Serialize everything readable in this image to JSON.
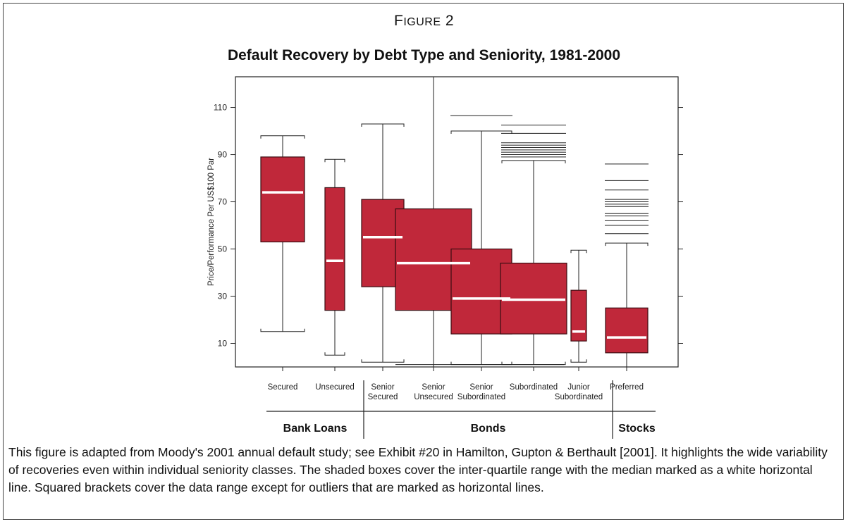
{
  "figure_label": {
    "first": "F",
    "rest": "IGURE",
    "number": " 2"
  },
  "caption": "This figure is adapted from Moody's 2001 annual default study; see Exhibit #20 in Hamilton, Gupton & Berthault [2001]. It highlights the wide variability of recoveries even within individual seniority classes. The shaded boxes cover the inter-quartile range with the median marked as a white horizontal line. Squared brackets cover the data range except for outliers that are marked as horizontal lines.",
  "colors": {
    "box": "#c0283a",
    "median": "#ffffff",
    "axis": "#222222"
  },
  "chart_data": {
    "type": "boxplot",
    "title": "Default Recovery by Debt Type and Seniority, 1981-2000",
    "ylabel": "Price/Performance Per US$100 Par",
    "ylim": [
      0,
      123
    ],
    "yticks": [
      10,
      30,
      50,
      70,
      90,
      110
    ],
    "grid": false,
    "series": [
      {
        "label": [
          "Secured"
        ],
        "group": "Bank Loans",
        "whisker_low": 15,
        "q1": 53,
        "median": 74,
        "q3": 89,
        "whisker_high": 98,
        "outliers": []
      },
      {
        "label": [
          "Unsecured"
        ],
        "group": "Bank Loans",
        "whisker_low": 5,
        "q1": 24,
        "median": 45,
        "q3": 76,
        "whisker_high": 88,
        "outliers": []
      },
      {
        "label": [
          "Senior",
          "Secured"
        ],
        "group": "Bonds",
        "whisker_low": 2,
        "q1": 34,
        "median": 55,
        "q3": 71,
        "whisker_high": 103,
        "outliers": []
      },
      {
        "label": [
          "Senior",
          "Unsecured"
        ],
        "group": "Bonds",
        "whisker_low": 0,
        "q1": 24,
        "median": 44,
        "q3": 67,
        "whisker_high": 123,
        "outliers": []
      },
      {
        "label": [
          "Senior",
          "Subordinated"
        ],
        "group": "Bonds",
        "whisker_low": 1,
        "q1": 14,
        "median": 29,
        "q3": 50,
        "whisker_high": 100,
        "outliers": [
          106.5
        ]
      },
      {
        "label": [
          "Subordinated"
        ],
        "group": "Bonds",
        "whisker_low": 1,
        "q1": 14,
        "median": 28.5,
        "q3": 44,
        "whisker_high": 87.5,
        "outliers": [
          89,
          90,
          91,
          92,
          93,
          94,
          95,
          99,
          102.5
        ]
      },
      {
        "label": [
          "Junior",
          "Subordinated"
        ],
        "group": "Bonds",
        "whisker_low": 2,
        "q1": 11,
        "median": 15,
        "q3": 32.5,
        "whisker_high": 49.5,
        "outliers": []
      },
      {
        "label": [
          "Preferred"
        ],
        "group": "Stocks",
        "whisker_low": 0,
        "q1": 6,
        "median": 12.5,
        "q3": 25,
        "whisker_high": 52.5,
        "outliers": [
          56.5,
          60,
          62,
          64,
          65,
          68,
          69,
          70,
          71,
          75,
          79,
          86
        ]
      }
    ],
    "groups": [
      "Bank Loans",
      "Bonds",
      "Stocks"
    ]
  }
}
